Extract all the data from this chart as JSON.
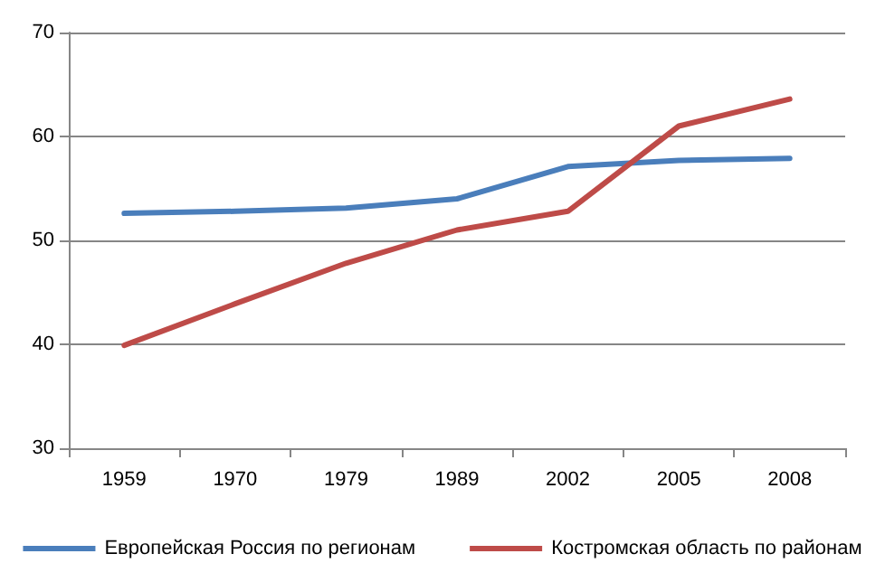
{
  "chart_data": {
    "type": "line",
    "categories": [
      "1959",
      "1970",
      "1979",
      "1989",
      "2002",
      "2005",
      "2008"
    ],
    "series": [
      {
        "name": "Европейская Россия по регионам",
        "color": "#4a7ebb",
        "values": [
          52.6,
          52.8,
          53.1,
          54.0,
          57.1,
          57.7,
          57.9
        ]
      },
      {
        "name": "Костромская область по районам",
        "color": "#be4b48",
        "values": [
          39.9,
          43.9,
          47.8,
          51.0,
          52.8,
          61.0,
          63.6
        ]
      }
    ],
    "ylim": [
      30,
      70
    ],
    "yticks": [
      30,
      40,
      50,
      60,
      70
    ],
    "grid": "y",
    "legend": "bottom",
    "marker": "none",
    "line_style": "solid"
  }
}
